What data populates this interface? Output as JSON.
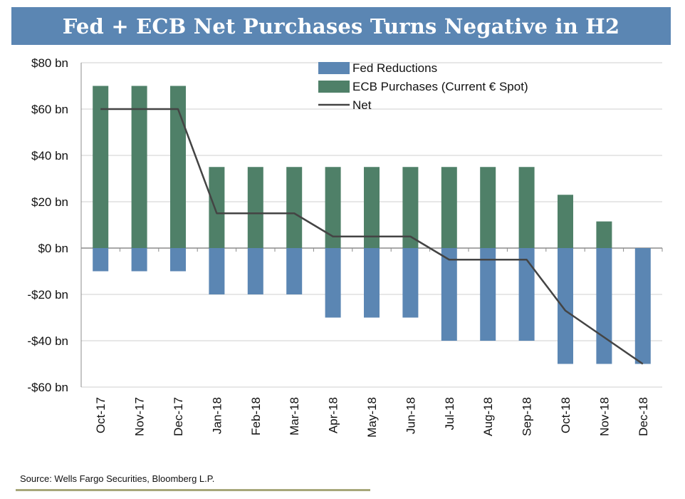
{
  "title": "Fed + ECB Net Purchases Turns Negative in H2",
  "source": "Source: Wells Fargo Securities, Bloomberg L.P.",
  "colors": {
    "fed": "#5b86b3",
    "ecb": "#4f8068",
    "net": "#444444",
    "title_bg": "#5b86b3"
  },
  "chart_data": {
    "type": "bar",
    "stacked": true,
    "categories": [
      "Oct-17",
      "Nov-17",
      "Dec-17",
      "Jan-18",
      "Feb-18",
      "Mar-18",
      "Apr-18",
      "May-18",
      "Jun-18",
      "Jul-18",
      "Aug-18",
      "Sep-18",
      "Oct-18",
      "Nov-18",
      "Dec-18"
    ],
    "series": [
      {
        "name": "Fed Reductions",
        "kind": "bar",
        "color": "#5b86b3",
        "values": [
          -10,
          -10,
          -10,
          -20,
          -20,
          -20,
          -30,
          -30,
          -30,
          -40,
          -40,
          -40,
          -50,
          -50,
          -50
        ]
      },
      {
        "name": "ECB Purchases (Current € Spot)",
        "kind": "bar",
        "color": "#4f8068",
        "values": [
          70,
          70,
          70,
          35,
          35,
          35,
          35,
          35,
          35,
          35,
          35,
          35,
          23,
          11.5,
          0
        ]
      },
      {
        "name": "Net",
        "kind": "line",
        "color": "#444444",
        "values": [
          60,
          60,
          60,
          15,
          15,
          15,
          5,
          5,
          5,
          -5,
          -5,
          -5,
          -27,
          -38.5,
          -50
        ]
      }
    ],
    "ylim": [
      -60,
      80
    ],
    "yticks": [
      80,
      60,
      40,
      20,
      0,
      -20,
      -40,
      -60
    ],
    "ytick_labels": [
      "$80 bn",
      "$60 bn",
      "$40 bn",
      "$20 bn",
      "$0 bn",
      "-$20 bn",
      "-$40 bn",
      "-$60 bn"
    ],
    "grid": true,
    "legend_position": "top-center"
  }
}
